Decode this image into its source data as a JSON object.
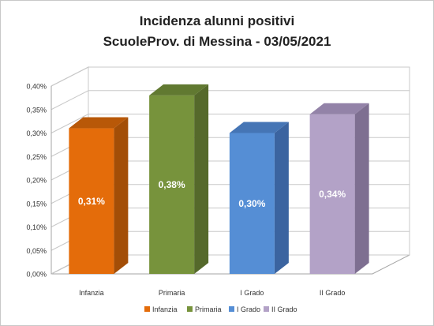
{
  "chart_data": {
    "type": "bar",
    "title": [
      "Incidenza alunni positivi",
      "ScuoleProv. di Messina - 03/05/2021"
    ],
    "categories": [
      "Infanzia",
      "Primaria",
      "I Grado",
      "II Grado"
    ],
    "values": [
      0.31,
      0.38,
      0.3,
      0.34
    ],
    "value_labels": [
      "0,31%",
      "0,38%",
      "0,30%",
      "0,34%"
    ],
    "unit": "%",
    "ylim": [
      0,
      0.4
    ],
    "yticks": [
      "0,00%",
      "0,05%",
      "0,10%",
      "0,15%",
      "0,20%",
      "0,25%",
      "0,30%",
      "0,35%",
      "0,40%"
    ],
    "grid": true,
    "legend": {
      "position": "bottom",
      "entries": [
        "Infanzia",
        "Primaria",
        "I Grado",
        "II Grado"
      ]
    },
    "colors": {
      "front": [
        "#e46c0a",
        "#77933c",
        "#558ed5",
        "#b3a2c7"
      ],
      "side": [
        "#a34e07",
        "#55692b",
        "#3b64a0",
        "#7e6f91"
      ],
      "top": [
        "#b85808",
        "#617931",
        "#4575b5",
        "#9383a8"
      ]
    }
  }
}
